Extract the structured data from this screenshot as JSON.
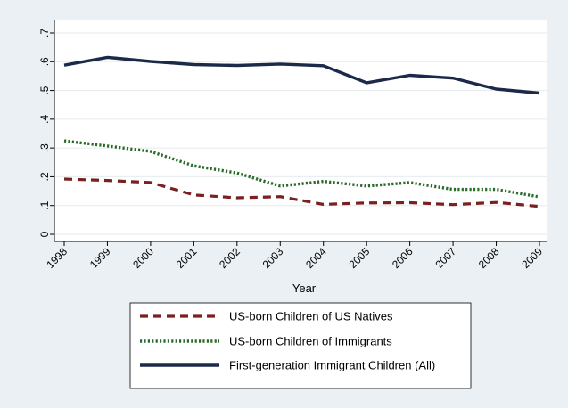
{
  "chart_data": {
    "type": "line",
    "title": "",
    "xlabel": "Year",
    "ylabel": "",
    "x": [
      "1998",
      "1999",
      "2000",
      "2001",
      "2002",
      "2003",
      "2004",
      "2005",
      "2006",
      "2007",
      "2008",
      "2009"
    ],
    "ylim": [
      0,
      0.7
    ],
    "yticks": [
      0,
      0.1,
      0.2,
      0.3,
      0.4,
      0.5,
      0.6,
      0.7
    ],
    "ytick_labels": [
      "0",
      ".1",
      ".2",
      ".3",
      ".4",
      ".5",
      ".6",
      ".7"
    ],
    "grid": true,
    "legend_position": "bottom",
    "series": [
      {
        "name": "US-born Children of US Natives",
        "values": [
          0.192,
          0.187,
          0.18,
          0.137,
          0.127,
          0.131,
          0.104,
          0.109,
          0.11,
          0.103,
          0.111,
          0.097
        ],
        "color": "#7a2020",
        "style": "dashed"
      },
      {
        "name": "US-born Children of Immigrants",
        "values": [
          0.325,
          0.307,
          0.288,
          0.238,
          0.213,
          0.168,
          0.184,
          0.168,
          0.18,
          0.156,
          0.156,
          0.13
        ],
        "color": "#2a6b2a",
        "style": "dotted"
      },
      {
        "name": "First-generation Immigrant Children (All)",
        "values": [
          0.588,
          0.615,
          0.601,
          0.59,
          0.587,
          0.592,
          0.586,
          0.527,
          0.553,
          0.543,
          0.505,
          0.491
        ],
        "color": "#1c2a4a",
        "style": "solid"
      }
    ]
  }
}
